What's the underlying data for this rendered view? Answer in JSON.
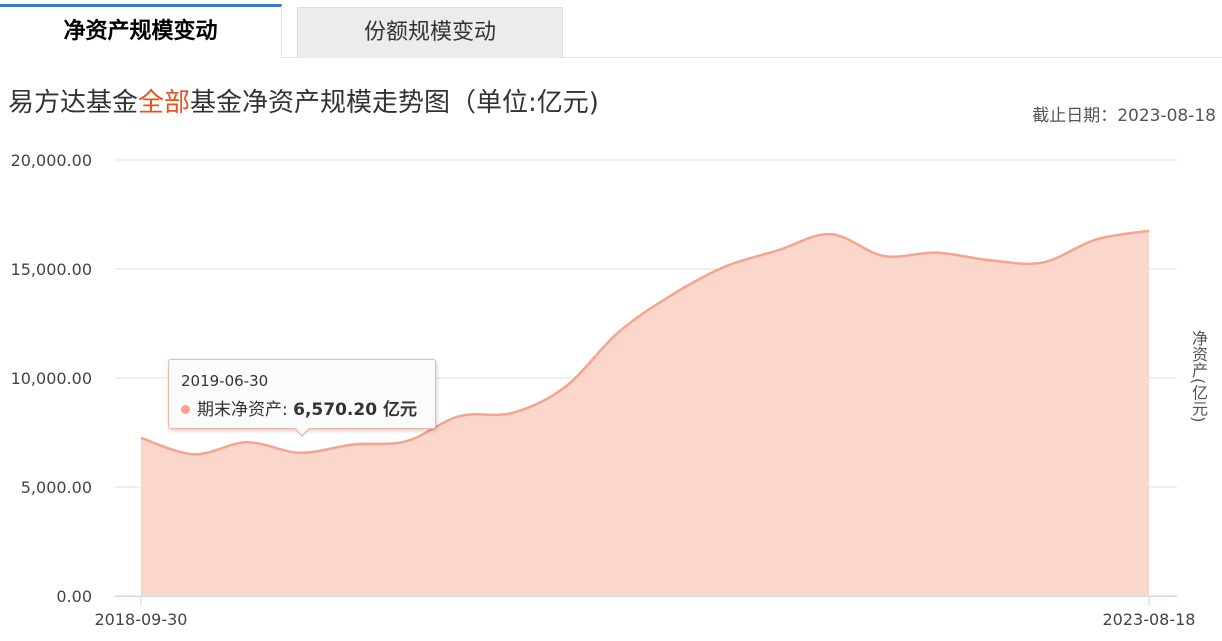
{
  "tabs": [
    {
      "label": "净资产规模变动",
      "active": true
    },
    {
      "label": "份额规模变动",
      "active": false
    }
  ],
  "title": {
    "prefix": "易方达基金",
    "highlight": "全部",
    "suffix": "基金净资产规模走势图（单位:亿元)"
  },
  "cutoff": "截止日期：2023-08-18",
  "colors": {
    "tab_active_top": "#3a78d6",
    "highlight": "#e8521c",
    "area_fill": "#fbd6cb",
    "area_line": "#f4a590"
  },
  "tooltip": {
    "date": "2019-06-30",
    "label": "期末净资产: ",
    "value": "6,570.20 亿元"
  },
  "chart_data": {
    "type": "area",
    "title": "",
    "xlabel": "",
    "ylabel": "净资产(亿元)",
    "ylim": [
      0,
      20000
    ],
    "y_ticks": [
      "20,000.00",
      "15,000.00",
      "10,000.00",
      "5,000.00",
      "0.00"
    ],
    "x_tick_labels": [
      "2018-09-30",
      "2023-08-18"
    ],
    "grid": true,
    "series": [
      {
        "values": [
          7250,
          6500,
          7050,
          6570,
          6950,
          7100,
          8250,
          8400,
          9600,
          12100,
          13800,
          15100,
          15850,
          16600,
          15600,
          15750,
          15400,
          15300,
          16350,
          16750
        ]
      }
    ]
  }
}
